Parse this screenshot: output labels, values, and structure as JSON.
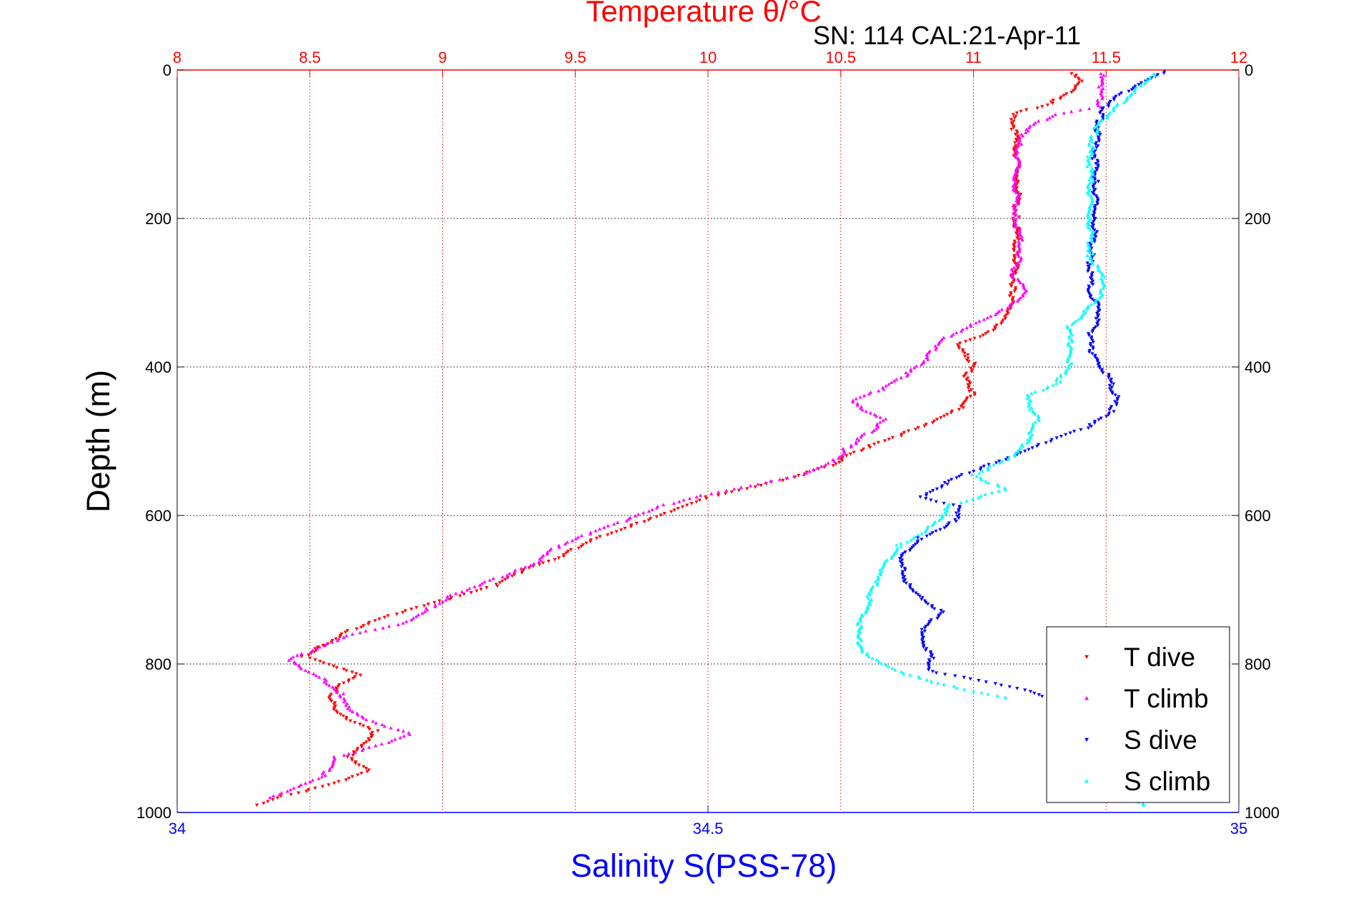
{
  "chart_data": {
    "type": "scatter",
    "title": "Temperature θ/°C",
    "annotation": "SN: 114  CAL:21-Apr-11",
    "xlabel_top": "Temperature θ/°C",
    "xlabel_bottom": "Salinity S(PSS-78)",
    "ylabel": "Depth (m)",
    "temperature_axis": {
      "range": [
        8,
        12
      ],
      "ticks": [
        "8",
        "8.5",
        "9",
        "9.5",
        "10",
        "10.5",
        "11",
        "11.5",
        "12"
      ],
      "grid": true,
      "color": "#ff0000"
    },
    "salinity_axis": {
      "range": [
        34,
        35
      ],
      "ticks": [
        "34",
        "34.5",
        "35"
      ],
      "color": "#0000ff"
    },
    "depth_axis": {
      "range": [
        0,
        1000
      ],
      "reversed": true,
      "ticks": [
        "0",
        "200",
        "400",
        "600",
        "800",
        "1000"
      ],
      "grid": true
    },
    "legend": {
      "position": "bottom-right",
      "entries": [
        "T dive",
        "T climb",
        "S dive",
        "S climb"
      ]
    },
    "series": [
      {
        "name": "T dive",
        "axis": "temperature",
        "color": "#ff0000",
        "marker": "triangle-down",
        "points": [
          [
            11.37,
            5
          ],
          [
            11.4,
            15
          ],
          [
            11.36,
            30
          ],
          [
            11.29,
            45
          ],
          [
            11.15,
            60
          ],
          [
            11.16,
            100
          ],
          [
            11.17,
            150
          ],
          [
            11.16,
            200
          ],
          [
            11.16,
            250
          ],
          [
            11.15,
            300
          ],
          [
            11.13,
            330
          ],
          [
            11.05,
            355
          ],
          [
            10.93,
            370
          ],
          [
            11.0,
            395
          ],
          [
            10.97,
            415
          ],
          [
            11.0,
            435
          ],
          [
            10.95,
            455
          ],
          [
            10.85,
            475
          ],
          [
            10.7,
            495
          ],
          [
            10.55,
            515
          ],
          [
            10.45,
            535
          ],
          [
            10.25,
            555
          ],
          [
            10.0,
            575
          ],
          [
            9.85,
            595
          ],
          [
            9.7,
            615
          ],
          [
            9.55,
            635
          ],
          [
            9.45,
            655
          ],
          [
            9.3,
            675
          ],
          [
            9.2,
            695
          ],
          [
            9.0,
            715
          ],
          [
            8.8,
            735
          ],
          [
            8.65,
            755
          ],
          [
            8.55,
            775
          ],
          [
            8.48,
            790
          ],
          [
            8.6,
            805
          ],
          [
            8.68,
            815
          ],
          [
            8.6,
            830
          ],
          [
            8.58,
            850
          ],
          [
            8.62,
            870
          ],
          [
            8.75,
            890
          ],
          [
            8.72,
            905
          ],
          [
            8.65,
            925
          ],
          [
            8.72,
            945
          ],
          [
            8.55,
            965
          ],
          [
            8.4,
            978
          ],
          [
            8.3,
            990
          ]
        ]
      },
      {
        "name": "T climb",
        "axis": "temperature",
        "color": "#ff00ff",
        "marker": "triangle-up",
        "points": [
          [
            11.48,
            5
          ],
          [
            11.48,
            25
          ],
          [
            11.47,
            50
          ],
          [
            11.3,
            60
          ],
          [
            11.2,
            80
          ],
          [
            11.17,
            100
          ],
          [
            11.16,
            150
          ],
          [
            11.16,
            200
          ],
          [
            11.18,
            240
          ],
          [
            11.15,
            275
          ],
          [
            11.2,
            300
          ],
          [
            11.1,
            325
          ],
          [
            10.98,
            345
          ],
          [
            10.87,
            365
          ],
          [
            10.82,
            390
          ],
          [
            10.75,
            410
          ],
          [
            10.65,
            430
          ],
          [
            10.55,
            445
          ],
          [
            10.6,
            460
          ],
          [
            10.67,
            470
          ],
          [
            10.6,
            490
          ],
          [
            10.52,
            510
          ],
          [
            10.48,
            525
          ],
          [
            10.35,
            545
          ],
          [
            10.15,
            560
          ],
          [
            9.95,
            575
          ],
          [
            9.8,
            590
          ],
          [
            9.7,
            605
          ],
          [
            9.55,
            625
          ],
          [
            9.42,
            645
          ],
          [
            9.35,
            665
          ],
          [
            9.2,
            685
          ],
          [
            9.05,
            705
          ],
          [
            8.95,
            725
          ],
          [
            8.85,
            745
          ],
          [
            8.65,
            760
          ],
          [
            8.55,
            775
          ],
          [
            8.42,
            795
          ],
          [
            8.55,
            820
          ],
          [
            8.62,
            840
          ],
          [
            8.65,
            860
          ],
          [
            8.72,
            875
          ],
          [
            8.88,
            895
          ],
          [
            8.75,
            910
          ],
          [
            8.6,
            925
          ],
          [
            8.55,
            950
          ],
          [
            8.45,
            965
          ],
          [
            8.35,
            980
          ]
        ]
      },
      {
        "name": "S dive",
        "axis": "salinity",
        "color": "#0000ff",
        "marker": "triangle-down",
        "points": [
          [
            34.93,
            2
          ],
          [
            34.91,
            15
          ],
          [
            34.88,
            40
          ],
          [
            34.87,
            60
          ],
          [
            34.865,
            100
          ],
          [
            34.865,
            150
          ],
          [
            34.865,
            200
          ],
          [
            34.86,
            260
          ],
          [
            34.86,
            300
          ],
          [
            34.87,
            330
          ],
          [
            34.86,
            355
          ],
          [
            34.86,
            380
          ],
          [
            34.875,
            410
          ],
          [
            34.885,
            440
          ],
          [
            34.88,
            460
          ],
          [
            34.86,
            480
          ],
          [
            34.82,
            500
          ],
          [
            34.79,
            520
          ],
          [
            34.74,
            545
          ],
          [
            34.7,
            575
          ],
          [
            34.74,
            590
          ],
          [
            34.73,
            610
          ],
          [
            34.7,
            630
          ],
          [
            34.68,
            660
          ],
          [
            34.69,
            700
          ],
          [
            34.72,
            730
          ],
          [
            34.7,
            760
          ],
          [
            34.71,
            790
          ],
          [
            34.71,
            810
          ],
          [
            34.75,
            820
          ],
          [
            34.8,
            835
          ],
          [
            34.83,
            850
          ],
          [
            34.85,
            870
          ]
        ]
      },
      {
        "name": "S climb",
        "axis": "salinity",
        "color": "#00ffff",
        "marker": "triangle-up",
        "points": [
          [
            34.92,
            5
          ],
          [
            34.9,
            30
          ],
          [
            34.88,
            55
          ],
          [
            34.865,
            80
          ],
          [
            34.86,
            110
          ],
          [
            34.86,
            150
          ],
          [
            34.86,
            200
          ],
          [
            34.86,
            250
          ],
          [
            34.875,
            290
          ],
          [
            34.86,
            320
          ],
          [
            34.84,
            345
          ],
          [
            34.84,
            370
          ],
          [
            34.84,
            395
          ],
          [
            34.83,
            420
          ],
          [
            34.8,
            440
          ],
          [
            34.81,
            470
          ],
          [
            34.8,
            500
          ],
          [
            34.79,
            520
          ],
          [
            34.75,
            545
          ],
          [
            34.78,
            565
          ],
          [
            34.73,
            585
          ],
          [
            34.71,
            615
          ],
          [
            34.68,
            640
          ],
          [
            34.66,
            680
          ],
          [
            34.65,
            720
          ],
          [
            34.64,
            760
          ],
          [
            34.65,
            790
          ],
          [
            34.69,
            815
          ],
          [
            34.73,
            830
          ],
          [
            34.78,
            845
          ],
          [
            34.9,
            960
          ],
          [
            34.9,
            980
          ],
          [
            34.91,
            990
          ]
        ]
      }
    ]
  }
}
